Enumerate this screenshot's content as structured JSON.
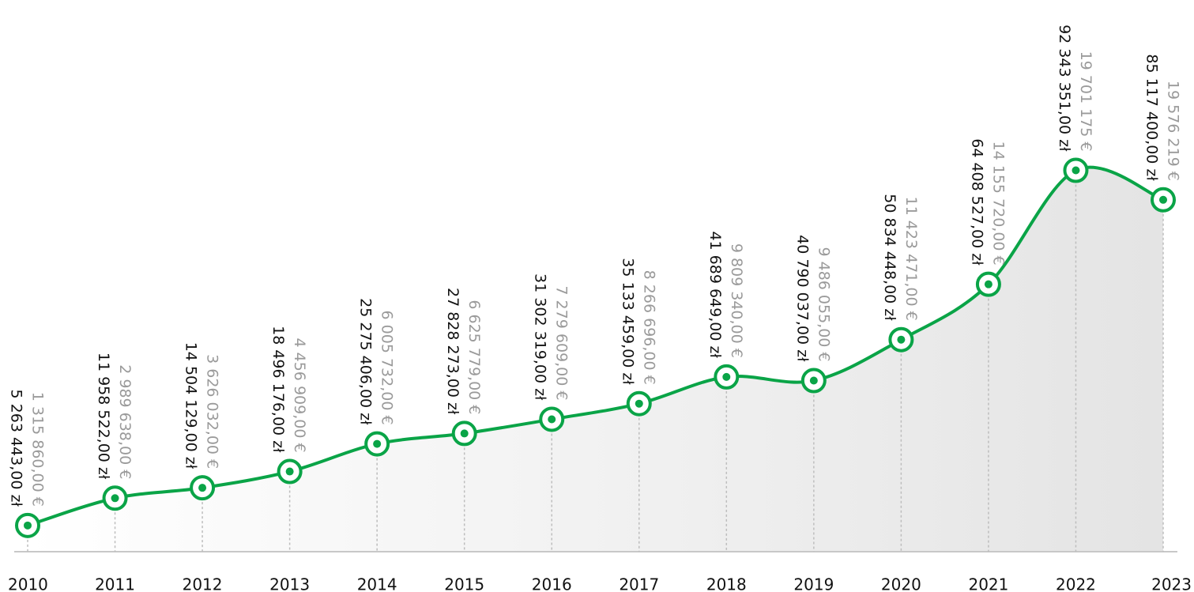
{
  "chart_data": {
    "type": "line",
    "categories": [
      "2010",
      "2011",
      "2012",
      "2013",
      "2014",
      "2015",
      "2016",
      "2017",
      "2018",
      "2019",
      "2020",
      "2021",
      "2022",
      "2023"
    ],
    "ylim": [
      0,
      100000000
    ],
    "y2lim": [
      0,
      21350000
    ],
    "series": [
      {
        "color": "#0aa447",
        "values": [
          5263443,
          11958522,
          14504129,
          18496176,
          25275406,
          27828273,
          31302319,
          35133459,
          41689649,
          40790037,
          50834448,
          64408527,
          92343351,
          85117400
        ],
        "value_labels": [
          "5 263 443,00 zł",
          "11 958 522,00 zł",
          "14 504 129,00 zł",
          "18 496 176,00 zł",
          "25 275 406,00 zł",
          "27 828 273,00 zł",
          "31 302 319,00 zł",
          "35 133 459,00 zł",
          "41 689 649,00 zł",
          "40 790 037,00 zł",
          "50 834 448,00 zł",
          "64 408 527,00 zł",
          "92 343 351,00 zł",
          "85 117 400,00 zł"
        ]
      },
      {
        "color": "#9a9a9a",
        "axis": "y2",
        "values": [
          1315860,
          2989638,
          3626032,
          4456909,
          6005732,
          6625779,
          7279609,
          8266696,
          9809340,
          9486055,
          11423471,
          14155720,
          19701175,
          19576219
        ],
        "value_labels": [
          "1 315 860,00 €",
          "2 989 638,00 €",
          "3 626 032,00 €",
          "4 456 909,00 €",
          "6 005 732,00 €",
          "6 625 779,00 €",
          "7 279 609,00 €",
          "8 266 696,00 €",
          "9 809 340,00 €",
          "9 486 055,00 €",
          "11 423 471,00 €",
          "14 155 720,00 €",
          "19 701 175 €",
          "19 576 219 €"
        ]
      }
    ]
  }
}
